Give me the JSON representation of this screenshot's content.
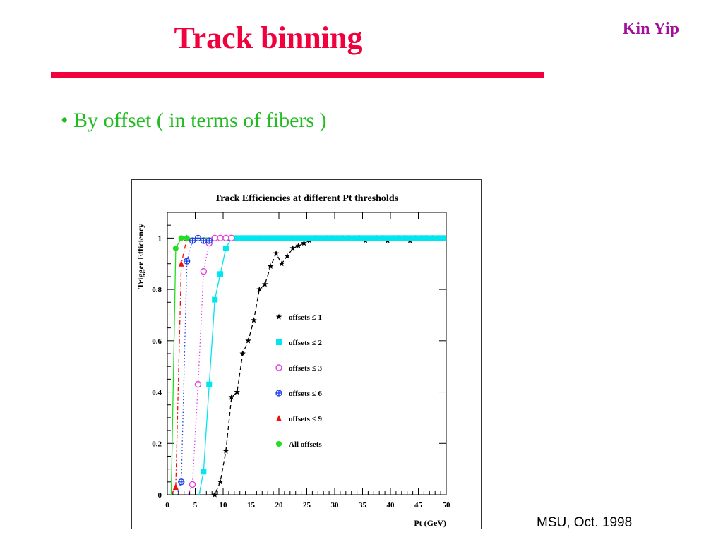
{
  "slide": {
    "title": "Track binning",
    "author": "Kin Yip",
    "bullet": "• By offset ( in terms of fibers )",
    "footer": "MSU, Oct. 1998",
    "colors": {
      "title": "#f0003c",
      "author": "#a0109a",
      "bullet": "#22bb22",
      "rule": "#f0003c"
    }
  },
  "chart_data": {
    "type": "line",
    "title": "Track Efficiencies at different Pt thresholds",
    "xlabel": "Pt (GeV)",
    "ylabel": "Trigger Efficiency",
    "xlim": [
      0,
      50
    ],
    "ylim": [
      0,
      1.1
    ],
    "xticks": [
      0,
      5,
      10,
      15,
      20,
      25,
      30,
      35,
      40,
      45,
      50
    ],
    "yticks": [
      0,
      0.2,
      0.4,
      0.6,
      0.8,
      1
    ],
    "ytick_labels": [
      "0",
      "0.2",
      "0.4",
      "0.6",
      "0.8",
      "1"
    ],
    "legend_position": "center-right",
    "series": [
      {
        "name": "offsets ≤ 1",
        "marker": "star",
        "color": "#000000",
        "line": "dashed",
        "x": [
          8.5,
          9.5,
          10.5,
          11.5,
          12.5,
          13.5,
          14.5,
          15.5,
          16.5,
          17.5,
          18.5,
          19.5,
          20.5,
          21.5,
          22.5,
          23.5,
          24.5,
          25.5,
          26.5,
          27.5,
          28.5,
          29.5,
          30.5,
          31.5,
          32.5,
          33.5,
          34.5,
          35.5,
          36.5,
          37.5,
          38.5,
          39.5,
          40.5,
          41.5,
          42.5,
          43.5,
          44.5,
          45.5,
          46.5,
          47.5,
          48.5,
          49.5
        ],
        "y": [
          0.0,
          0.05,
          0.17,
          0.38,
          0.4,
          0.55,
          0.6,
          0.68,
          0.8,
          0.82,
          0.89,
          0.94,
          0.9,
          0.93,
          0.96,
          0.97,
          0.98,
          0.99,
          1.0,
          1.0,
          1.0,
          1.0,
          1.0,
          1.0,
          1.0,
          1.0,
          1.0,
          0.99,
          1.0,
          1.0,
          1.0,
          0.99,
          1.0,
          1.0,
          1.0,
          0.99,
          1.0,
          1.0,
          1.0,
          1.0,
          1.0,
          1.0
        ]
      },
      {
        "name": "offsets ≤ 2",
        "marker": "square",
        "color": "#00e6f0",
        "line": "solid",
        "x": [
          6.5,
          7.5,
          8.5,
          9.5,
          10.5,
          11.5,
          12.5,
          13.5,
          14.5,
          15.5,
          16.5,
          17.5,
          18.5,
          19.5,
          20.5,
          21.5,
          22.5,
          23.5,
          24.5,
          25.5,
          26.5,
          27.5,
          28.5,
          29.5,
          30.5,
          31.5,
          32.5,
          33.5,
          34.5,
          35.5,
          36.5,
          37.5,
          38.5,
          39.5,
          40.5,
          41.5,
          42.5,
          43.5,
          44.5,
          45.5,
          46.5,
          47.5,
          48.5,
          49.5
        ],
        "y": [
          0.09,
          0.43,
          0.76,
          0.86,
          0.96,
          1.0,
          1.0,
          1.0,
          1.0,
          1.0,
          1.0,
          1.0,
          1.0,
          1.0,
          1.0,
          1.0,
          1.0,
          1.0,
          1.0,
          1.0,
          1.0,
          1.0,
          1.0,
          1.0,
          1.0,
          1.0,
          1.0,
          1.0,
          1.0,
          1.0,
          1.0,
          1.0,
          1.0,
          1.0,
          1.0,
          1.0,
          1.0,
          1.0,
          1.0,
          1.0,
          1.0,
          1.0,
          1.0,
          1.0
        ]
      },
      {
        "name": "offsets ≤ 3",
        "marker": "circle-open",
        "color": "#e040e0",
        "line": "dotted",
        "x": [
          4.5,
          5.5,
          6.5,
          7.5,
          8.5,
          9.5,
          10.5,
          11.5
        ],
        "y": [
          0.04,
          0.43,
          0.87,
          0.98,
          1.0,
          1.0,
          1.0,
          1.0
        ]
      },
      {
        "name": "offsets ≤ 6",
        "marker": "cross-open",
        "color": "#1a3ce6",
        "line": "dotted",
        "x": [
          2.5,
          3.5,
          4.5,
          5.5,
          6.5,
          7.5
        ],
        "y": [
          0.05,
          0.91,
          0.99,
          1.0,
          0.99,
          0.99
        ]
      },
      {
        "name": "offsets ≤ 9",
        "marker": "triangle",
        "color": "#f01010",
        "line": "dashdot",
        "x": [
          1.5,
          2.5,
          3.5
        ],
        "y": [
          0.03,
          0.9,
          1.0
        ]
      },
      {
        "name": "All offsets",
        "marker": "circle",
        "color": "#22dd22",
        "line": "solid",
        "x": [
          1.5,
          2.5,
          3.5
        ],
        "y": [
          0.96,
          1.0,
          1.0
        ]
      }
    ]
  }
}
